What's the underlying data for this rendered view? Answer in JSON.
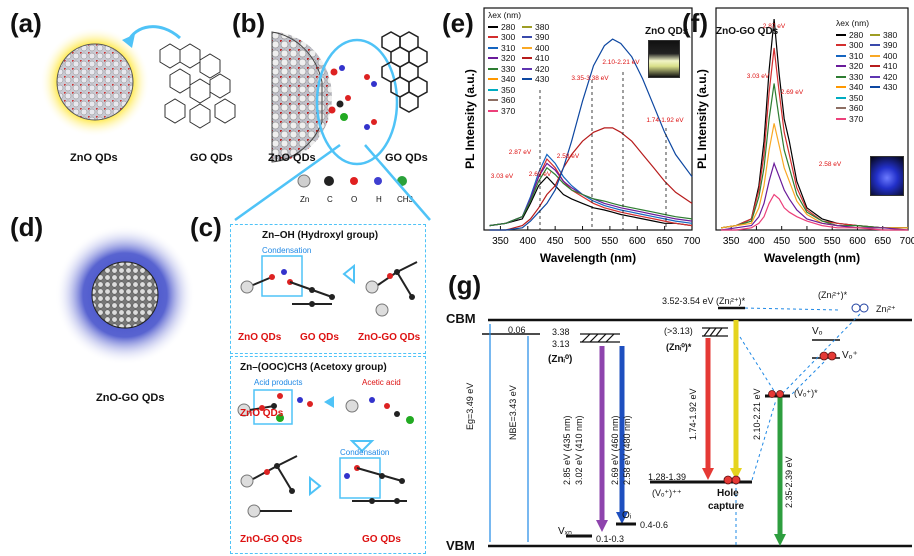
{
  "panels": {
    "a": {
      "label": "(a)",
      "left_caption": "ZnO QDs",
      "right_caption": "GO QDs"
    },
    "b": {
      "label": "(b)",
      "left_caption": "ZnO QDs",
      "right_caption": "GO QDs"
    },
    "atoms": [
      "Zn",
      "C",
      "O",
      "H",
      "CH3"
    ],
    "atom_colors": [
      "#cfcfcf",
      "#222222",
      "#e02020",
      "#3f3fd0",
      "#2aa13a"
    ],
    "c": {
      "label": "(c)",
      "box1_title": "Zn–OH (Hydroxyl group)",
      "box1_step": "Condensation",
      "box1_labels": [
        "ZnO QDs",
        "GO QDs",
        "ZnO-GO QDs"
      ],
      "box2_title": "Zn–(OOC)CH3 (Acetoxy group)",
      "box2_notes": [
        "Acid products",
        "Acetic acid"
      ],
      "box2_step": "Condensation",
      "box2_labels_top": [
        "ZnO QDs",
        "GO QDs"
      ],
      "box2_labels_bottom": [
        "ZnO-GO QDs",
        "GO QDs"
      ]
    },
    "d": {
      "label": "(d)",
      "caption": "ZnO-GO QDs"
    },
    "e": {
      "label": "(e)",
      "title": "ZnO QDs",
      "legend_title": "λex (nm)",
      "legend": [
        "280",
        "300",
        "310",
        "320",
        "330",
        "340",
        "350",
        "360",
        "370",
        "380",
        "390",
        "400",
        "410",
        "420",
        "430"
      ],
      "annotations": [
        "3.35-3.38 eV",
        "2.10-2.21 eV",
        "1.74-1.92 eV",
        "2.87 eV",
        "2.58 eV",
        "2.69 eV",
        "3.03 eV"
      ]
    },
    "f": {
      "label": "(f)",
      "title": "ZnO-GO QDs",
      "legend_title": "λex (nm)",
      "legend": [
        "280",
        "300",
        "310",
        "320",
        "330",
        "340",
        "350",
        "360",
        "370",
        "380",
        "390",
        "400",
        "410",
        "420",
        "430"
      ],
      "annotations": [
        "2.87 eV",
        "3.03 eV",
        "2.69 eV",
        "2.58 eV"
      ]
    },
    "g": {
      "label": "(g)",
      "levels": {
        "cbm": "CBM",
        "vbm": "VBM"
      },
      "texts": [
        "0.06",
        "3.38",
        "3.13",
        "(Znᵢ⁰)",
        "3.52-3.54 eV",
        "(Znᵢ²⁺)*",
        "(Znᵢ²⁺)*",
        "Znᵢ²⁺",
        "(>3.13)",
        "(Znᵢ⁰)*",
        "Vₒ",
        "Vₒ⁺",
        "(Vₒ⁺)*",
        "1.28-1.39",
        "(Vₒ⁺)⁺⁺",
        "Hole",
        "capture",
        "0.4-0.6",
        "0.1-0.3",
        "Oᵢ",
        "Vₓₙ"
      ],
      "vertical_labels": [
        "Eg=3.49 eV",
        "NBE=3.43 eV",
        "2.85 eV (435 nm)",
        "3.02 eV (410 nm)",
        "2.69 eV (460 nm)",
        "2.58 eV (480 nm)",
        "1.74-1.92 eV",
        "2.10-2.21 eV",
        "2.35-2.39 eV"
      ]
    }
  },
  "chart_data": [
    {
      "type": "line",
      "title": "ZnO QDs",
      "xlabel": "Wavelength (nm)",
      "ylabel": "PL Intensity (a.u.)",
      "xlim": [
        320,
        700
      ],
      "xticks": [
        350,
        400,
        450,
        500,
        550,
        600,
        650,
        700
      ],
      "x": [
        330,
        360,
        390,
        405,
        420,
        435,
        450,
        465,
        480,
        500,
        520,
        540,
        555,
        570,
        590,
        610,
        630,
        650,
        670,
        700
      ],
      "series": [
        {
          "name": "280",
          "color": "#000000",
          "values": [
            0.02,
            0.03,
            0.05,
            0.12,
            0.2,
            0.24,
            0.2,
            0.16,
            0.14,
            0.12,
            0.1,
            0.09,
            0.08,
            0.07,
            0.06,
            0.05,
            0.04,
            0.03,
            0.03,
            0.02
          ]
        },
        {
          "name": "300",
          "color": "#d32f2f",
          "values": [
            0.02,
            0.03,
            0.06,
            0.14,
            0.24,
            0.32,
            0.28,
            0.22,
            0.18,
            0.15,
            0.12,
            0.1,
            0.09,
            0.08,
            0.07,
            0.06,
            0.05,
            0.04,
            0.03,
            0.02
          ]
        },
        {
          "name": "310",
          "color": "#1565c0",
          "values": [
            0.02,
            0.03,
            0.06,
            0.15,
            0.26,
            0.34,
            0.3,
            0.24,
            0.2,
            0.16,
            0.13,
            0.11,
            0.1,
            0.09,
            0.08,
            0.07,
            0.06,
            0.05,
            0.04,
            0.03
          ]
        },
        {
          "name": "320",
          "color": "#6a1b9a",
          "values": [
            0.02,
            0.03,
            0.06,
            0.14,
            0.24,
            0.3,
            0.27,
            0.22,
            0.19,
            0.16,
            0.14,
            0.12,
            0.11,
            0.1,
            0.09,
            0.08,
            0.07,
            0.06,
            0.05,
            0.04
          ]
        },
        {
          "name": "330",
          "color": "#2e7d32",
          "values": [
            0.02,
            0.03,
            0.06,
            0.13,
            0.22,
            0.28,
            0.25,
            0.21,
            0.18,
            0.16,
            0.14,
            0.13,
            0.12,
            0.11,
            0.1,
            0.09,
            0.08,
            0.07,
            0.06,
            0.05
          ]
        },
        {
          "name": "420",
          "color": "#b71c1c",
          "values": [
            0.0,
            0.0,
            0.02,
            0.05,
            0.1,
            0.16,
            0.2,
            0.28,
            0.34,
            0.4,
            0.44,
            0.46,
            0.46,
            0.44,
            0.4,
            0.34,
            0.28,
            0.22,
            0.17,
            0.12
          ]
        },
        {
          "name": "430",
          "color": "#0d47a1",
          "values": [
            0.0,
            0.0,
            0.01,
            0.04,
            0.08,
            0.12,
            0.18,
            0.28,
            0.4,
            0.58,
            0.74,
            0.83,
            0.86,
            0.84,
            0.78,
            0.68,
            0.56,
            0.44,
            0.34,
            0.24
          ]
        }
      ]
    },
    {
      "type": "line",
      "title": "ZnO-GO QDs",
      "xlabel": "Wavelength (nm)",
      "ylabel": "PL Intensity (a.u.)",
      "xlim": [
        320,
        700
      ],
      "xticks": [
        350,
        400,
        450,
        500,
        550,
        600,
        650,
        700
      ],
      "x": [
        330,
        360,
        390,
        405,
        415,
        425,
        435,
        445,
        455,
        465,
        480,
        500,
        530,
        560,
        600,
        650,
        700
      ],
      "series": [
        {
          "name": "280",
          "color": "#000000",
          "values": [
            0.01,
            0.02,
            0.05,
            0.2,
            0.4,
            0.72,
            0.95,
            0.7,
            0.5,
            0.4,
            0.22,
            0.1,
            0.05,
            0.03,
            0.02,
            0.01,
            0.01
          ]
        },
        {
          "name": "300",
          "color": "#d32f2f",
          "values": [
            0.01,
            0.02,
            0.05,
            0.18,
            0.34,
            0.62,
            0.82,
            0.62,
            0.44,
            0.34,
            0.19,
            0.09,
            0.04,
            0.03,
            0.02,
            0.01,
            0.01
          ]
        },
        {
          "name": "330",
          "color": "#2e7d32",
          "values": [
            0.01,
            0.02,
            0.04,
            0.15,
            0.28,
            0.5,
            0.66,
            0.5,
            0.36,
            0.28,
            0.16,
            0.08,
            0.04,
            0.02,
            0.02,
            0.01,
            0.01
          ]
        },
        {
          "name": "350",
          "color": "#f9a825",
          "values": [
            0.01,
            0.02,
            0.03,
            0.1,
            0.2,
            0.36,
            0.48,
            0.38,
            0.28,
            0.22,
            0.13,
            0.07,
            0.03,
            0.02,
            0.01,
            0.01,
            0.01
          ]
        },
        {
          "name": "380",
          "color": "#6a1b9a",
          "values": [
            0.0,
            0.01,
            0.02,
            0.06,
            0.12,
            0.22,
            0.3,
            0.24,
            0.18,
            0.14,
            0.09,
            0.05,
            0.03,
            0.02,
            0.01,
            0.01,
            0.0
          ]
        },
        {
          "name": "410",
          "color": "#ec407a",
          "values": [
            0.0,
            0.0,
            0.01,
            0.03,
            0.06,
            0.12,
            0.16,
            0.14,
            0.1,
            0.08,
            0.06,
            0.04,
            0.02,
            0.01,
            0.01,
            0.0,
            0.0
          ]
        }
      ]
    }
  ]
}
